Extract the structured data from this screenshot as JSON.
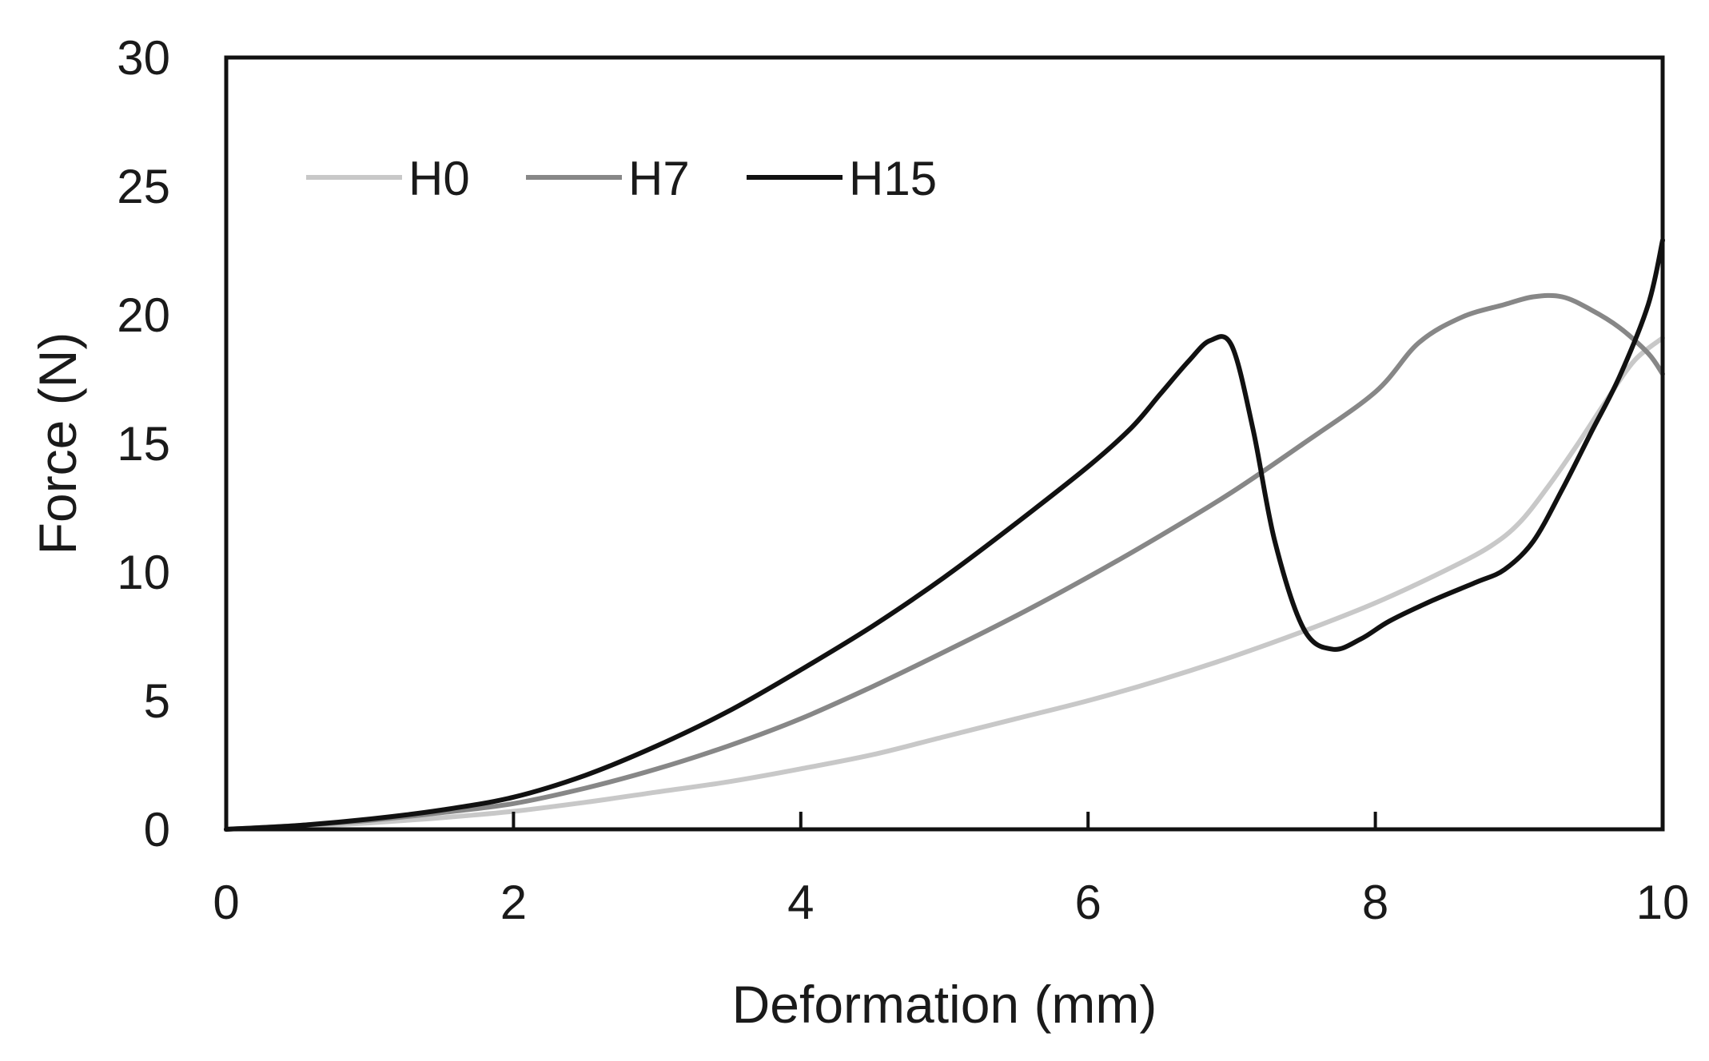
{
  "chart_data": {
    "type": "line",
    "title": "",
    "xlabel": "Deformation (mm)",
    "ylabel": "Force (N)",
    "xlim": [
      0,
      10
    ],
    "ylim": [
      0,
      30
    ],
    "xticks": [
      0,
      2,
      4,
      6,
      8,
      10
    ],
    "yticks": [
      0,
      5,
      10,
      15,
      20,
      25,
      30
    ],
    "grid": false,
    "legend_position": "top-left",
    "series": [
      {
        "name": "H0",
        "color": "#c8c8c8",
        "x": [
          0,
          0.5,
          1,
          1.5,
          2,
          2.5,
          3,
          3.5,
          4,
          4.5,
          5,
          5.5,
          6,
          6.5,
          7,
          7.5,
          8,
          8.5,
          8.8,
          9,
          9.2,
          9.4,
          9.6,
          9.8,
          10
        ],
        "y": [
          0,
          0.1,
          0.25,
          0.45,
          0.7,
          1.05,
          1.45,
          1.85,
          2.35,
          2.9,
          3.6,
          4.3,
          5.0,
          5.8,
          6.7,
          7.7,
          8.8,
          10.1,
          11.0,
          11.9,
          13.3,
          14.9,
          16.6,
          18.2,
          19.1
        ]
      },
      {
        "name": "H7",
        "color": "#878787",
        "x": [
          0,
          0.5,
          1,
          1.5,
          2,
          2.5,
          3,
          3.5,
          4,
          4.5,
          5,
          5.5,
          6,
          6.5,
          7,
          7.5,
          8,
          8.3,
          8.6,
          8.9,
          9.1,
          9.3,
          9.5,
          9.7,
          9.9,
          10
        ],
        "y": [
          0,
          0.15,
          0.35,
          0.65,
          1.0,
          1.6,
          2.35,
          3.25,
          4.3,
          5.55,
          6.9,
          8.3,
          9.8,
          11.4,
          13.1,
          15.0,
          17.0,
          18.9,
          19.9,
          20.4,
          20.7,
          20.7,
          20.2,
          19.5,
          18.5,
          17.7
        ]
      },
      {
        "name": "H15",
        "color": "#111111",
        "x": [
          0,
          0.5,
          1,
          1.5,
          2,
          2.5,
          3,
          3.5,
          4,
          4.5,
          5,
          5.5,
          6,
          6.3,
          6.5,
          6.7,
          6.85,
          7.0,
          7.15,
          7.3,
          7.5,
          7.7,
          7.9,
          8.1,
          8.4,
          8.7,
          8.9,
          9.1,
          9.3,
          9.5,
          9.7,
          9.9,
          10
        ],
        "y": [
          0,
          0.15,
          0.4,
          0.75,
          1.25,
          2.1,
          3.25,
          4.6,
          6.2,
          7.9,
          9.8,
          11.9,
          14.1,
          15.6,
          16.9,
          18.2,
          19.0,
          18.8,
          15.5,
          11.2,
          7.8,
          7.0,
          7.4,
          8.1,
          8.9,
          9.6,
          10.1,
          11.2,
          13.2,
          15.4,
          17.6,
          20.4,
          22.9
        ]
      }
    ]
  }
}
